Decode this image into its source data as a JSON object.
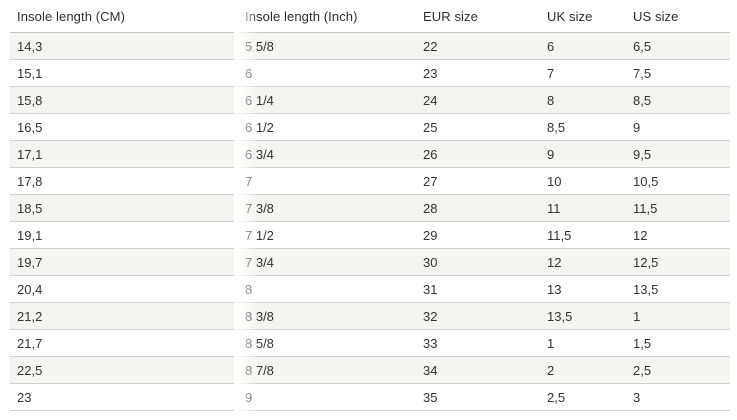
{
  "table": {
    "columns": [
      "Insole length (CM)",
      "Insole length (Inch)",
      "EUR size",
      "UK size",
      "US size"
    ],
    "rows": [
      [
        "14,3",
        "5 5/8",
        "22",
        "6",
        "6,5"
      ],
      [
        "15,1",
        "6",
        "23",
        "7",
        "7,5"
      ],
      [
        "15,8",
        "6 1/4",
        "24",
        "8",
        "8,5"
      ],
      [
        "16,5",
        "6 1/2",
        "25",
        "8,5",
        "9"
      ],
      [
        "17,1",
        "6 3/4",
        "26",
        "9",
        "9,5"
      ],
      [
        "17,8",
        "7",
        "27",
        "10",
        "10,5"
      ],
      [
        "18,5",
        "7 3/8",
        "28",
        "11",
        "11,5"
      ],
      [
        "19,1",
        "7 1/2",
        "29",
        "11,5",
        "12"
      ],
      [
        "19,7",
        "7 3/4",
        "30",
        "12",
        "12,5"
      ],
      [
        "20,4",
        "8",
        "31",
        "13",
        "13,5"
      ],
      [
        "21,2",
        "8 3/8",
        "32",
        "13,5",
        "1"
      ],
      [
        "21,7",
        "8 5/8",
        "33",
        "1",
        "1,5"
      ],
      [
        "22,5",
        "8 7/8",
        "34",
        "2",
        "2,5"
      ],
      [
        "23",
        "9",
        "35",
        "2,5",
        "3"
      ]
    ],
    "colors": {
      "row_stripe": "#f5f4f0",
      "row_border": "#d4d2ce",
      "header_border": "#c9c7c3",
      "text": "#333333",
      "background": "#ffffff"
    }
  }
}
